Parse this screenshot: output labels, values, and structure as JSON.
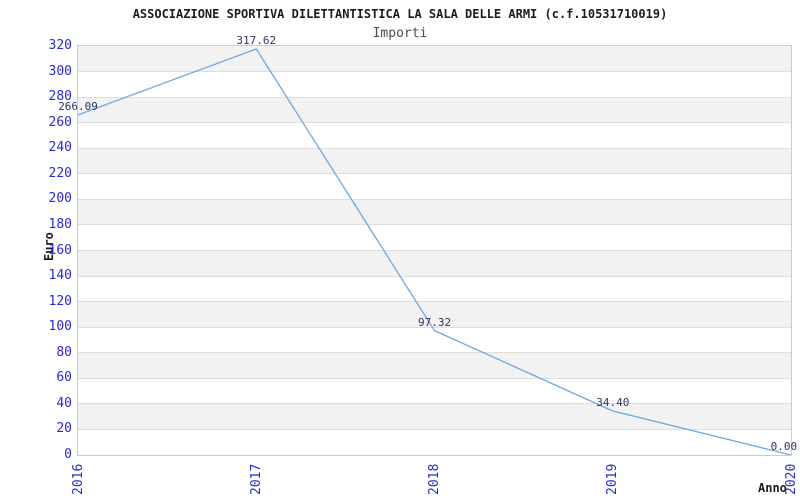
{
  "chart_data": {
    "type": "line",
    "title": "ASSOCIAZIONE SPORTIVA DILETTANTISTICA LA SALA DELLE ARMI (c.f.10531710019)",
    "subtitle": "Importi",
    "xlabel": "Anno",
    "ylabel": "Euro",
    "categories": [
      "2016",
      "2017",
      "2018",
      "2019",
      "2020"
    ],
    "values": [
      266.09,
      317.62,
      97.32,
      34.4,
      0
    ],
    "data_labels": [
      "266.09",
      "317.62",
      "97.32",
      "34.40",
      "0.00"
    ],
    "ylim": [
      0,
      320
    ],
    "ytick_step": 20,
    "yticks": [
      0,
      20,
      40,
      60,
      80,
      100,
      120,
      140,
      160,
      180,
      200,
      220,
      240,
      260,
      280,
      300,
      320
    ],
    "grid": "horizontal alternating bands",
    "legend": "none"
  },
  "colors": {
    "line": "#6fa8e0",
    "axis_tick_label": "#2929d6",
    "data_label": "#333366",
    "band_gray": "#f2f2f2",
    "grid_line": "#dedede",
    "plot_border": "#cccccc",
    "title": "#1c1c1c",
    "subtitle": "#4d4d4d",
    "background": "#ffffff"
  }
}
